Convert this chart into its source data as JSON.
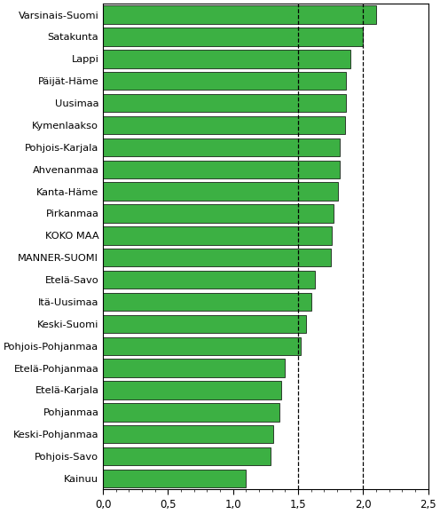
{
  "categories": [
    "Varsinais-Suomi",
    "Satakunta",
    "Lappi",
    "Päijät-Häme",
    "Uusimaa",
    "Kymenlaakso",
    "Pohjois-Karjala",
    "Ahvenanmaa",
    "Kanta-Häme",
    "Pirkanmaa",
    "KOKO MAA",
    "MANNER-SUOMI",
    "Etelä-Savo",
    "Itä-Uusimaa",
    "Keski-Suomi",
    "Pohjois-Pohjanmaa",
    "Etelä-Pohjanmaa",
    "Etelä-Karjala",
    "Pohjanmaa",
    "Keski-Pohjanmaa",
    "Pohjois-Savo",
    "Kainuu"
  ],
  "values": [
    2.1,
    2.0,
    1.9,
    1.87,
    1.87,
    1.86,
    1.82,
    1.82,
    1.81,
    1.77,
    1.76,
    1.75,
    1.63,
    1.6,
    1.56,
    1.52,
    1.4,
    1.37,
    1.36,
    1.31,
    1.29,
    1.1
  ],
  "bar_color": "#3cb043",
  "xlim": [
    0,
    2.5
  ],
  "xticks": [
    0.0,
    0.5,
    1.0,
    1.5,
    2.0,
    2.5
  ],
  "xticklabels": [
    "0,0",
    "0,5",
    "1,0",
    "1,5",
    "2,0",
    "2,5"
  ],
  "dashed_lines": [
    1.5,
    2.0
  ],
  "background_color": "#ffffff",
  "bar_edge_color": "#000000",
  "bar_linewidth": 0.5,
  "bar_height": 0.82,
  "figsize": [
    4.96,
    5.79
  ],
  "dpi": 100,
  "label_fontsize": 8.2,
  "tick_fontsize": 8.5
}
